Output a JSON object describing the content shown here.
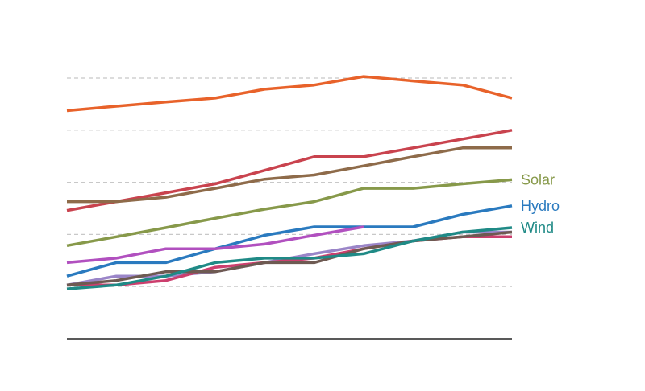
{
  "chart_data": {
    "type": "line",
    "title": "",
    "xlabel": "",
    "ylabel": "",
    "x": [
      0,
      1,
      2,
      3,
      4,
      5,
      6,
      7,
      8,
      9
    ],
    "xlim": [
      0,
      9
    ],
    "ylim": [
      0,
      100
    ],
    "gridlines": [
      20,
      40,
      60,
      80,
      100
    ],
    "grid": "horizontal-dashed",
    "legend": "direct-labels-right",
    "series": [
      {
        "name": "",
        "color": "#e8622a",
        "values": [
          87.5,
          89.2,
          90.8,
          92.3,
          95.7,
          97.3,
          100.6,
          98.9,
          97.3,
          92.3
        ]
      },
      {
        "name": "",
        "color": "#c9434e",
        "values": [
          49.2,
          52.6,
          56.0,
          59.4,
          64.6,
          69.8,
          69.8,
          73.2,
          76.6,
          80.0
        ]
      },
      {
        "name": "",
        "color": "#8e6b4a",
        "values": [
          52.6,
          52.6,
          54.3,
          57.7,
          61.2,
          62.8,
          66.3,
          69.8,
          73.2,
          73.2
        ]
      },
      {
        "name": "Solar",
        "color": "#87994a",
        "values": [
          35.7,
          39.1,
          42.6,
          46.2,
          49.7,
          52.6,
          57.7,
          57.7,
          59.4,
          61.0
        ]
      },
      {
        "name": "Hydro",
        "color": "#2a7abf",
        "values": [
          24.0,
          29.2,
          29.2,
          34.5,
          39.7,
          42.9,
          42.9,
          42.9,
          47.7,
          51.0
        ]
      },
      {
        "name": "",
        "color": "#b150bf",
        "values": [
          29.2,
          30.9,
          34.5,
          34.5,
          36.3,
          39.7,
          42.9,
          null,
          null,
          null
        ]
      },
      {
        "name": "",
        "color": "#9a85c8",
        "values": [
          20.6,
          24.0,
          24.0,
          25.7,
          29.2,
          32.6,
          35.7,
          37.5,
          40.9,
          40.9
        ]
      },
      {
        "name": "",
        "color": "#cc3f6e",
        "values": [
          20.6,
          20.6,
          22.3,
          27.4,
          29.2,
          30.9,
          34.5,
          37.5,
          39.1,
          39.1
        ]
      },
      {
        "name": "",
        "color": "#6e5a52",
        "values": [
          20.6,
          22.3,
          25.7,
          25.7,
          29.2,
          29.2,
          34.5,
          37.5,
          39.1,
          40.9
        ]
      },
      {
        "name": "Wind",
        "color": "#1f8a86",
        "values": [
          19.1,
          20.6,
          24.0,
          29.2,
          30.9,
          30.9,
          32.6,
          37.5,
          40.9,
          42.6
        ]
      }
    ]
  }
}
